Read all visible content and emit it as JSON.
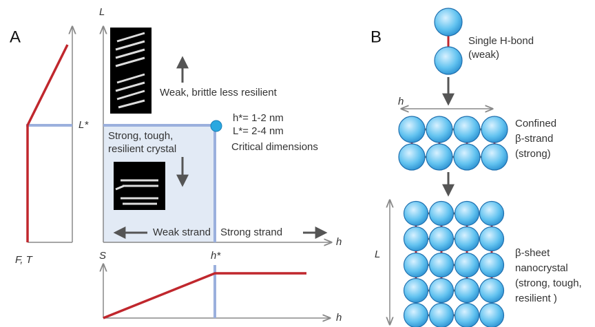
{
  "panel_a": {
    "label": "A",
    "left_plot": {
      "x_label": "F, T",
      "marker_label": "L*"
    },
    "main_plot": {
      "y_label": "L",
      "x_label": "h",
      "upper_region_label": "Weak, brittle less resilient",
      "crystal_label_line1": "Strong, tough,",
      "crystal_label_line2": "resilient crystal",
      "critical_h": "h*= 1-2 nm",
      "critical_l": "L*= 2-4 nm",
      "critical_label": "Critical dimensions",
      "weak_strand": "Weak strand",
      "strong_strand": "Strong strand"
    },
    "bottom_plot": {
      "y_label": "S",
      "x_label": "h",
      "marker_label": "h*"
    }
  },
  "panel_b": {
    "label": "B",
    "single": {
      "line1": "Single H-bond",
      "line2": "(weak)"
    },
    "strand": {
      "dimension": "h",
      "line1": "Confined",
      "line2": "β-strand",
      "line3": "(strong)"
    },
    "sheet": {
      "dimension": "L",
      "line1": "β-sheet",
      "line2": "nanocrystal",
      "line3": "(strong, tough,",
      "line4": "resilient )"
    }
  }
}
